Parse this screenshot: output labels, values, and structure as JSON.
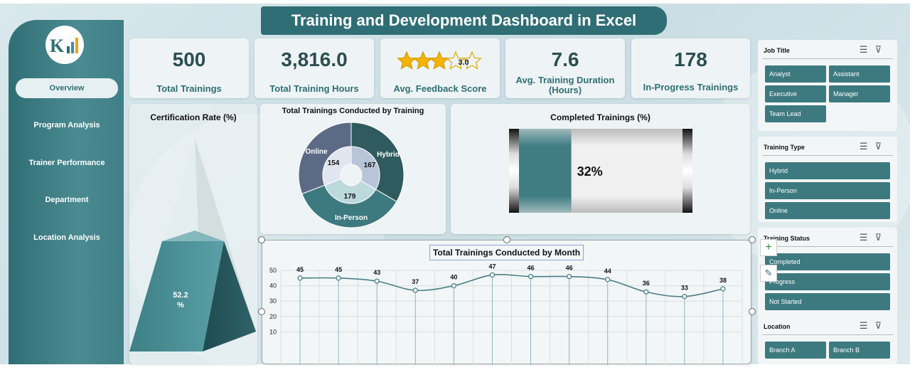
{
  "title": "Training and Development Dashboard in Excel",
  "nav": [
    {
      "label": "Overview",
      "active": true
    },
    {
      "label": "Program Analysis"
    },
    {
      "label": "Trainer Performance"
    },
    {
      "label": "Department"
    },
    {
      "label": "Location Analysis"
    }
  ],
  "kpis": [
    {
      "value": "500",
      "label": "Total Trainings"
    },
    {
      "value": "3,816.0",
      "label": "Total Training Hours"
    },
    {
      "value": "3.0",
      "label": "Avg. Feedback Score",
      "stars": 3
    },
    {
      "value": "7.6",
      "label": "Avg. Training Duration (Hours)"
    },
    {
      "value": "178",
      "label": "In-Progress Trainings"
    }
  ],
  "slicers": [
    {
      "title": "Job Title",
      "items": [
        "Analyst",
        "Assistant",
        "Executive",
        "Manager",
        "Team Lead"
      ]
    },
    {
      "title": "Training Type",
      "items": [
        "Hybrid",
        "In-Person",
        "Online"
      ]
    },
    {
      "title": "Training Status",
      "items": [
        "Completed",
        "Progress",
        "Not Started"
      ]
    },
    {
      "title": "Location",
      "items": [
        "Branch A",
        "Branch B"
      ]
    }
  ],
  "colors": {
    "accent": "#2f6e74",
    "line": "#4a7f85",
    "dark": "#2c4e52"
  },
  "chart_data": [
    {
      "type": "pyramid",
      "title": "Certification Rate (%)",
      "value": 52.2,
      "value_label": "52.2",
      "value_unit": "%"
    },
    {
      "type": "pie",
      "title": "Total Trainings Conducted by Training",
      "categories": [
        "Hybrid",
        "In-Person",
        "Online"
      ],
      "values": [
        167,
        179,
        154
      ],
      "legend": "none"
    },
    {
      "type": "bar",
      "title": "Completed Trainings (%)",
      "value": 32,
      "value_label": "32%"
    },
    {
      "type": "line",
      "title": "Total Trainings Conducted by Month",
      "values": [
        45,
        45,
        43,
        37,
        40,
        47,
        46,
        46,
        44,
        36,
        33,
        38
      ],
      "ylim": [
        0,
        50
      ],
      "yticks": [
        "50",
        "40",
        "30",
        "20",
        "10"
      ],
      "grid": true
    }
  ]
}
